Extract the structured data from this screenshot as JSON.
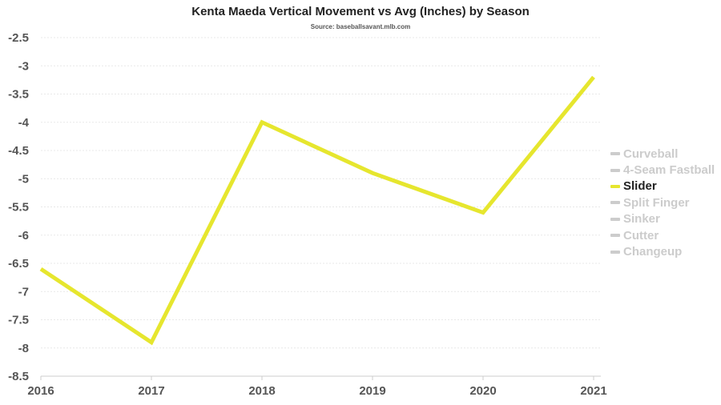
{
  "chart_data": {
    "type": "line",
    "title": "Kenta Maeda Vertical Movement vs Avg (Inches) by Season",
    "subtitle": "Source: baseballsavant.mlb.com",
    "x": [
      "2016",
      "2017",
      "2018",
      "2019",
      "2020",
      "2021"
    ],
    "y_ticks": [
      "-2.5",
      "-3",
      "-3.5",
      "-4",
      "-4.5",
      "-5",
      "-5.5",
      "-6",
      "-6.5",
      "-7",
      "-7.5",
      "-8",
      "-8.5"
    ],
    "ylim": [
      -8.5,
      -2.5
    ],
    "grid": true,
    "legend_position": "right",
    "series": [
      {
        "name": "Slider",
        "values": [
          -6.6,
          -7.9,
          -4.0,
          -4.9,
          -5.6,
          -3.2
        ],
        "color": "#e6e62e"
      }
    ],
    "legend": [
      {
        "label": "Curveball",
        "active": false
      },
      {
        "label": "4-Seam Fastball",
        "active": false
      },
      {
        "label": "Slider",
        "active": true
      },
      {
        "label": "Split Finger",
        "active": false
      },
      {
        "label": "Sinker",
        "active": false
      },
      {
        "label": "Cutter",
        "active": false
      },
      {
        "label": "Changeup",
        "active": false
      }
    ]
  }
}
